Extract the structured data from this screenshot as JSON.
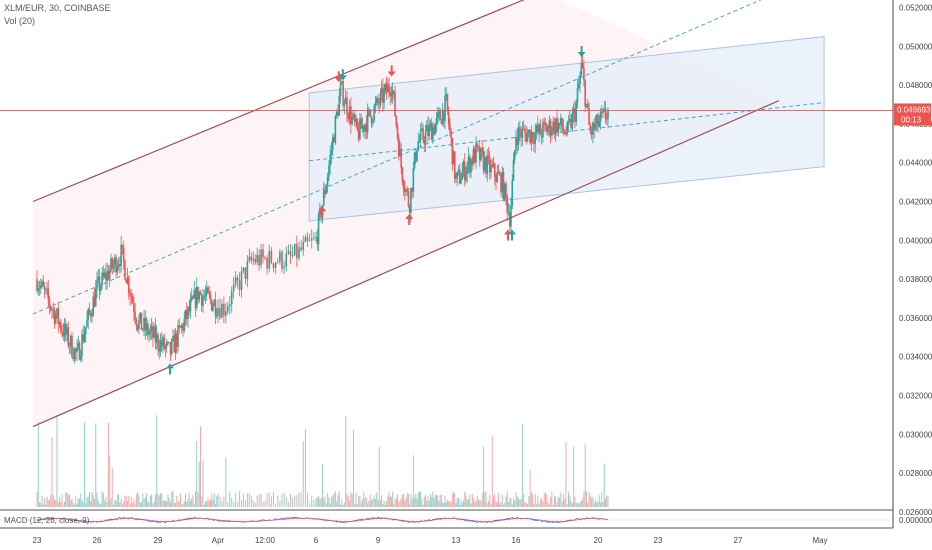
{
  "header": {
    "symbol_line": "XLM/EUR, 30, COINBASE",
    "volume_line": "Vol (20)",
    "macd_line": "MACD (12, 26, close, 9)"
  },
  "price_tag": {
    "value": "0.046693",
    "countdown": "00:13",
    "color": "#ef5350"
  },
  "colors": {
    "up": "#26a69a",
    "down": "#ef5350",
    "channel_line": "#9e4d58",
    "channel_fill": "#fdecee",
    "box_fill": "#e3ecf8",
    "box_line": "#a9c4e8",
    "dashed": "#4aa3c8"
  },
  "chart_data": {
    "type": "candlestick",
    "title": "XLM/EUR, 30, COINBASE",
    "ylim": [
      0.0255,
      0.0528
    ],
    "y_ticks": [
      "0.052000",
      "0.050000",
      "0.048000",
      "0.046000",
      "0.044000",
      "0.042000",
      "0.040000",
      "0.038000",
      "0.036000",
      "0.034000",
      "0.032000",
      "0.030000",
      "0.028000",
      "0.026000"
    ],
    "x_ticks": [
      "23",
      "26",
      "29",
      "Apr",
      "12:00",
      "6",
      "9",
      "13",
      "16",
      "20",
      "23",
      "27",
      "May"
    ],
    "macd_ticks": [
      "0.000000"
    ],
    "last_price": 0.046693,
    "anchors": [
      {
        "day": 0,
        "price": 0.038
      },
      {
        "day": 2.0,
        "price": 0.034
      },
      {
        "day": 3.0,
        "price": 0.0375
      },
      {
        "day": 4.2,
        "price": 0.0393
      },
      {
        "day": 5.0,
        "price": 0.0358
      },
      {
        "day": 6.6,
        "price": 0.0342
      },
      {
        "day": 8.0,
        "price": 0.0373
      },
      {
        "day": 9.2,
        "price": 0.0365
      },
      {
        "day": 10.1,
        "price": 0.039
      },
      {
        "day": 11.2,
        "price": 0.039
      },
      {
        "day": 12.0,
        "price": 0.04
      },
      {
        "day": 12.5,
        "price": 0.043
      },
      {
        "day": 13.2,
        "price": 0.0478
      },
      {
        "day": 14.0,
        "price": 0.0455
      },
      {
        "day": 15.0,
        "price": 0.047
      },
      {
        "day": 15.7,
        "price": 0.0481
      },
      {
        "day": 16.2,
        "price": 0.0437
      },
      {
        "day": 16.6,
        "price": 0.0418
      },
      {
        "day": 17.0,
        "price": 0.045
      },
      {
        "day": 18.0,
        "price": 0.046
      },
      {
        "day": 18.5,
        "price": 0.047
      },
      {
        "day": 19.0,
        "price": 0.043
      },
      {
        "day": 20.0,
        "price": 0.0445
      },
      {
        "day": 21.3,
        "price": 0.043
      },
      {
        "day": 21.7,
        "price": 0.0412
      },
      {
        "day": 22.0,
        "price": 0.0455
      },
      {
        "day": 23.0,
        "price": 0.0455
      },
      {
        "day": 24.0,
        "price": 0.046
      },
      {
        "day": 24.5,
        "price": 0.0455
      },
      {
        "day": 24.9,
        "price": 0.0467
      },
      {
        "day": 25.2,
        "price": 0.049
      },
      {
        "day": 25.6,
        "price": 0.0455
      },
      {
        "day": 26.5,
        "price": 0.0466
      }
    ],
    "annotations": [
      {
        "type": "arrow-up",
        "day": 6.6,
        "price": 0.0335,
        "color": "#26a69a"
      },
      {
        "type": "arrow-up",
        "day": 12.3,
        "price": 0.0416,
        "color": "#ef5350"
      },
      {
        "type": "arrow-down",
        "day": 13.1,
        "price": 0.0483,
        "color": "#ef5350"
      },
      {
        "type": "arrow-down",
        "day": 13.3,
        "price": 0.0484,
        "color": "#26a69a"
      },
      {
        "type": "arrow-down",
        "day": 15.7,
        "price": 0.0486,
        "color": "#ef5350"
      },
      {
        "type": "arrow-up",
        "day": 16.6,
        "price": 0.0412,
        "color": "#ef5350"
      },
      {
        "type": "arrow-up",
        "day": 21.6,
        "price": 0.0404,
        "color": "#ef5350"
      },
      {
        "type": "arrow-up",
        "day": 21.8,
        "price": 0.0404,
        "color": "#26a69a"
      },
      {
        "type": "arrow-down",
        "day": 25.2,
        "price": 0.0496,
        "color": "#26a69a"
      }
    ],
    "channel": {
      "lower": [
        [
          -0.2,
          0.0304
        ],
        [
          35,
          0.0472
        ]
      ],
      "upper": [
        [
          -0.2,
          0.042
        ],
        [
          23.3,
          0.0528
        ]
      ]
    },
    "box": {
      "top": [
        [
          11.8,
          0.0476
        ],
        [
          37.2,
          0.0505
        ]
      ],
      "bottom": [
        [
          11.8,
          0.041
        ],
        [
          37.2,
          0.0438
        ]
      ]
    },
    "dashed_lines": [
      {
        "from": [
          -0.2,
          0.0362
        ],
        "to": [
          35,
          0.0528
        ]
      },
      {
        "from": [
          11.8,
          0.0441
        ],
        "to": [
          37.2,
          0.0471
        ]
      }
    ]
  }
}
